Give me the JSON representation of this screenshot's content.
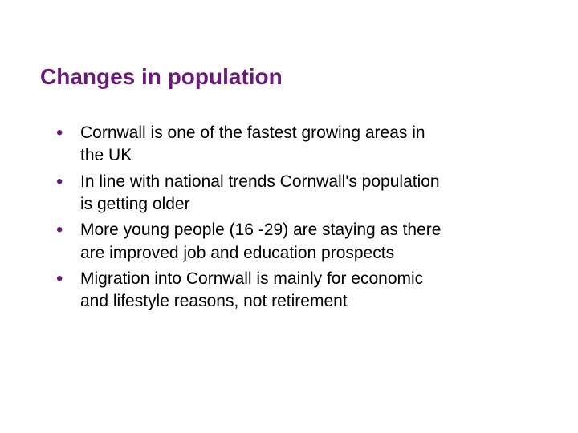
{
  "slide": {
    "title": "Changes in population",
    "title_color": "#6a1b7a",
    "title_fontsize": 28,
    "title_fontweight": "bold",
    "bullet_color": "#6a1b7a",
    "text_color": "#000000",
    "text_fontsize": 21,
    "background_color": "#ffffff",
    "bullets": [
      "Cornwall is one of the fastest growing areas in the UK",
      "In line with national trends Cornwall's population is getting older",
      "More young people (16 -29) are staying as there are improved job and education prospects",
      "Migration into Cornwall is mainly for economic and lifestyle reasons, not retirement"
    ]
  }
}
